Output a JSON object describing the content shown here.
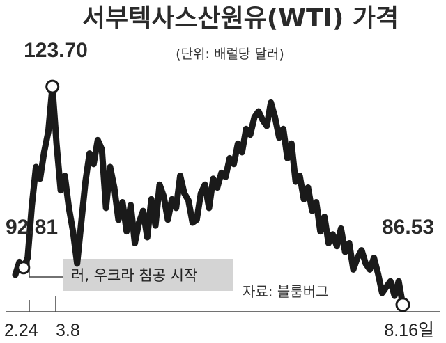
{
  "chart_data": {
    "type": "line",
    "title": "서부텍사스산원유(WTI) 가격",
    "unit": "(단위: 배럴당 달러)",
    "source": "자료: 블룸버그",
    "colors": {
      "line": "#1a1a1a",
      "annotation_box": "#d4d4d4",
      "axis": "#444444"
    },
    "x_ticks": [
      "2.24",
      "3.8",
      "8.16일"
    ],
    "annotations": {
      "start": "92.81",
      "peak": "123.70",
      "end": "86.53",
      "event": "러, 우크라 침공 시작"
    },
    "ylim": [
      80,
      130
    ],
    "series": [
      {
        "values": [
          91.6,
          93.8,
          92.8,
          94.5,
          103.4,
          110.0,
          108.0,
          112.6,
          116.0,
          123.7,
          114.0,
          106.0,
          108.5,
          103.0,
          99.0,
          93.5,
          100.5,
          107.5,
          112.3,
          110.5,
          114.6,
          113.0,
          103.0,
          110.0,
          106.5,
          101.0,
          104.0,
          99.0,
          103.5,
          97.0,
          100.5,
          102.5,
          98.0,
          104.5,
          100.0,
          107.0,
          105.0,
          101.0,
          104.5,
          103.0,
          108.5,
          105.5,
          104.3,
          100.5,
          101.0,
          105.5,
          107.0,
          103.0,
          108.0,
          106.5,
          109.0,
          108.3,
          111.5,
          110.5,
          114.0,
          112.5,
          116.5,
          115.5,
          118.5,
          119.5,
          118.0,
          117.0,
          121.0,
          118.5,
          115.0,
          116.5,
          111.5,
          114.0,
          107.5,
          108.5,
          104.5,
          106.5,
          102.5,
          104.0,
          99.0,
          101.5,
          97.0,
          98.5,
          96.5,
          99.5,
          95.5,
          97.0,
          92.5,
          94.5,
          95.8,
          93.5,
          92.5,
          94.5,
          91.8,
          88.5,
          89.5,
          90.5,
          88.0,
          90.5,
          86.5
        ]
      }
    ]
  }
}
